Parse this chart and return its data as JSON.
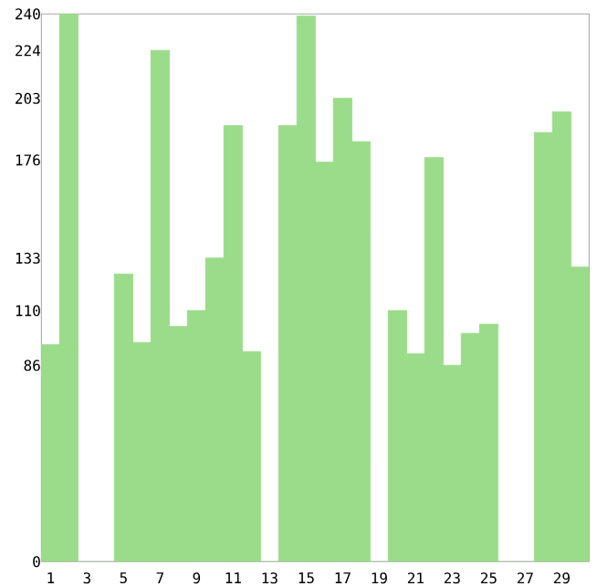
{
  "chart_data": {
    "type": "bar",
    "categories": [
      "1",
      null,
      "3",
      null,
      "5",
      null,
      "7",
      null,
      "9",
      null,
      "11",
      null,
      "13",
      null,
      "15",
      null,
      "17",
      null,
      "19",
      null,
      "21",
      null,
      "23",
      null,
      "25",
      null,
      "27",
      null,
      "29",
      null
    ],
    "values": [
      95,
      240,
      0,
      0,
      126,
      96,
      224,
      103,
      110,
      133,
      191,
      92,
      0,
      191,
      239,
      175,
      203,
      184,
      0,
      110,
      91,
      177,
      86,
      100,
      104,
      0,
      0,
      188,
      197,
      129
    ],
    "color": "#9bdc8a",
    "ylim": [
      0,
      240
    ],
    "yticks": [
      0,
      86,
      110,
      133,
      176,
      203,
      224,
      240
    ]
  }
}
